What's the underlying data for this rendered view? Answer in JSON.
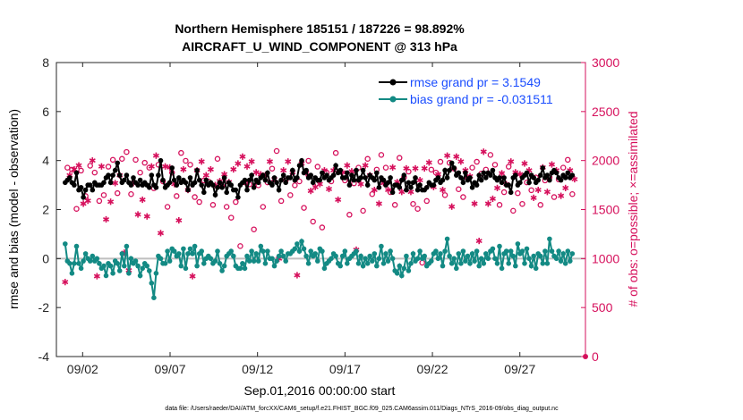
{
  "chart_data": {
    "type": "line",
    "title_line1": "Northern Hemisphere 185151 / 187226 = 98.892%",
    "title_line2": "AIRCRAFT_U_WIND_COMPONENT @ 313 hPa",
    "xlabel": "Sep.01,2016 00:00:00 start",
    "ylabel_left": "rmse and bias (model - observation)",
    "ylabel_right": "# of obs: o=possible; ×=assimilated",
    "footnote": "data file: /Users/raeder/DAI/ATM_forcXX/CAM6_setup/f.e21.FHIST_BGC.f09_025.CAM6assim.011/Diags_NTrS_2016-09/obs_diag_output.nc",
    "xlim": [
      0.5,
      30.75
    ],
    "ylim_left": [
      -4,
      8
    ],
    "ylim_right": [
      0,
      3000
    ],
    "x_ticks": [
      2,
      7,
      12,
      17,
      22,
      27
    ],
    "x_tick_labels": [
      "09/02",
      "09/07",
      "09/12",
      "09/17",
      "09/22",
      "09/27"
    ],
    "y_left_ticks": [
      "-4",
      "-2",
      "0",
      "2",
      "4",
      "6",
      "8"
    ],
    "y_right_ticks": [
      "0",
      "500",
      "1000",
      "1500",
      "2000",
      "2500",
      "3000"
    ],
    "colors": {
      "rmse": "#000000",
      "bias": "#138a84",
      "obs": "#d6105c",
      "zero_line": "#bfbfbf",
      "legend_text": "#1a4dff"
    },
    "series": [
      {
        "name": "rmse grand pr = 3.1549",
        "values": [
          3.1,
          3.2,
          3.3,
          3.1,
          3.0,
          3.5,
          2.8,
          2.9,
          2.5,
          2.8,
          3.0,
          3.0,
          2.8,
          3.1,
          3.0,
          3.0,
          3.0,
          3.1,
          3.3,
          3.4,
          3.1,
          3.4,
          3.6,
          3.9,
          3.4,
          3.1,
          3.2,
          3.4,
          3.1,
          3.0,
          3.3,
          3.1,
          3.0,
          3.2,
          3.0,
          3.1,
          3.0,
          2.9,
          3.4,
          3.0,
          2.9,
          3.4,
          4.0,
          3.2,
          2.9,
          3.0,
          3.1,
          3.7,
          3.2,
          3.0,
          3.3,
          3.1,
          3.2,
          3.1,
          2.8,
          3.3,
          3.0,
          3.1,
          3.6,
          3.2,
          3.0,
          2.7,
          3.2,
          3.0,
          3.1,
          3.0,
          2.6,
          2.9,
          3.1,
          2.9,
          3.3,
          2.7,
          3.1,
          3.0,
          2.8,
          2.8,
          2.5,
          3.0,
          3.1,
          3.2,
          2.8,
          3.2,
          3.4,
          2.9,
          3.2,
          3.1,
          3.3,
          3.4,
          3.2,
          3.5,
          3.1,
          3.0,
          3.3,
          3.1,
          2.8,
          3.2,
          3.4,
          3.1,
          3.3,
          3.3,
          3.6,
          3.2,
          3.3,
          3.8,
          4.0,
          3.5,
          3.6,
          3.3,
          3.4,
          3.1,
          3.3,
          3.2,
          3.2,
          3.5,
          3.3,
          3.4,
          3.2,
          3.3,
          3.4,
          3.8,
          3.5,
          3.6,
          3.3,
          3.3,
          3.5,
          3.0,
          3.4,
          3.2,
          3.6,
          3.2,
          3.3,
          3.6,
          3.3,
          3.0,
          3.4,
          3.3,
          3.2,
          3.5,
          2.9,
          3.3,
          3.2,
          3.0,
          3.1,
          3.3,
          2.7,
          3.0,
          3.0,
          2.9,
          3.2,
          3.4,
          2.8,
          3.1,
          2.9,
          3.1,
          3.3,
          2.8,
          3.0,
          2.8,
          2.8,
          2.9,
          3.1,
          3.0,
          3.0,
          3.2,
          3.3,
          3.1,
          3.2,
          3.6,
          3.3,
          3.6,
          3.9,
          3.7,
          3.4,
          3.5,
          3.3,
          3.1,
          3.5,
          3.2,
          3.3,
          2.9,
          3.1,
          3.0,
          3.4,
          3.2,
          3.5,
          3.3,
          3.5,
          3.4,
          3.6,
          3.3,
          3.2,
          3.3,
          3.1,
          3.3,
          3.0,
          3.0,
          2.7,
          3.3,
          3.4,
          3.0,
          3.1,
          3.3,
          3.4,
          3.5,
          3.1,
          3.4,
          3.3,
          3.1,
          3.2,
          3.4,
          3.7,
          3.3,
          3.4,
          3.2,
          3.5,
          3.6,
          3.5,
          3.3,
          3.2,
          3.4,
          3.3,
          3.5,
          3.3,
          3.4
        ]
      },
      {
        "name": "bias grand pr = -0.031511",
        "values": [
          0.6,
          -0.1,
          -0.2,
          -0.6,
          -0.2,
          0.5,
          -0.2,
          -0.4,
          -0.1,
          0.2,
          0.0,
          -0.1,
          0.1,
          -0.1,
          0.0,
          -0.2,
          -0.4,
          -0.3,
          -0.7,
          -0.2,
          -0.3,
          -0.6,
          -0.1,
          -0.2,
          -0.5,
          0.2,
          -0.3,
          0.5,
          -0.6,
          0.0,
          -0.2,
          -0.1,
          -0.3,
          -0.7,
          -0.4,
          -0.2,
          -0.3,
          -0.5,
          -1.0,
          -1.6,
          -0.6,
          0.1,
          0.0,
          -0.2,
          -0.2,
          0.3,
          -0.1,
          0.4,
          0.3,
          0.1,
          0.2,
          -0.3,
          0.4,
          -0.4,
          0.2,
          0.4,
          0.2,
          0.5,
          -0.3,
          0.2,
          0.3,
          -0.2,
          0.0,
          0.1,
          0.0,
          -0.2,
          -0.1,
          0.3,
          -0.2,
          -0.5,
          -0.3,
          0.1,
          0.2,
          0.3,
          0.1,
          -0.3,
          -0.4,
          -0.4,
          -0.2,
          -0.4,
          0.1,
          -0.1,
          0.3,
          -0.1,
          0.2,
          -0.1,
          0.5,
          0.3,
          -0.2,
          0.3,
          0.0,
          0.0,
          -0.3,
          -0.1,
          0.1,
          0.3,
          0.1,
          -0.1,
          0.2,
          0.2,
          0.3,
          0.4,
          0.6,
          0.3,
          0.7,
          0.4,
          0.1,
          -0.2,
          0.3,
          0.1,
          0.2,
          -0.1,
          0.4,
          0.3,
          -0.4,
          -0.2,
          -0.1,
          0.0,
          0.2,
          0.1,
          -0.2,
          -0.3,
          0.1,
          0.3,
          -0.2,
          0.0,
          0.1,
          0.2,
          0.3,
          -0.2,
          0.1,
          -0.3,
          0.0,
          -0.2,
          0.1,
          -0.1,
          0.2,
          -0.3,
          0.0,
          0.5,
          -0.2,
          0.2,
          -0.1,
          0.3,
          0.0,
          -0.5,
          -0.6,
          -0.3,
          -0.7,
          -0.4,
          0.1,
          -0.5,
          -0.2,
          0.2,
          -0.1,
          0.0,
          0.3,
          0.0,
          0.1,
          -0.3,
          -0.2,
          -0.1,
          0.2,
          0.3,
          0.0,
          0.2,
          -0.3,
          0.3,
          0.8,
          0.1,
          -0.2,
          0.0,
          -0.4,
          0.2,
          -0.2,
          0.3,
          -0.1,
          0.1,
          -0.2,
          0.2,
          -0.1,
          0.3,
          -0.3,
          0.0,
          -0.2,
          0.2,
          0.0,
          0.3,
          0.4,
          0.0,
          -0.2,
          0.5,
          -0.4,
          0.2,
          0.3,
          -0.2,
          0.3,
          0.1,
          -0.3,
          0.6,
          0.2,
          0.3,
          -0.2,
          0.4,
          0.0,
          -0.3,
          0.1,
          -0.4,
          0.2,
          0.1,
          -0.2,
          0.3,
          -0.2,
          0.8,
          0.3,
          0.1,
          0.0,
          0.3,
          -0.1,
          0.2,
          -0.2,
          0.3,
          -0.1,
          0.2
        ]
      }
    ],
    "obs_counts": [
      760,
      1900,
      1850,
      1880,
      1910,
      1480,
      1950,
      1870,
      1560,
      1610,
      1590,
      1920,
      2000,
      1850,
      820,
      1560,
      1940,
      1620,
      1400,
      1910,
      1580,
      1980,
      1770,
      1640,
      1850,
      1990,
      1060,
      2060,
      880,
      1630,
      1770,
      1980,
      1450,
      1850,
      1600,
      1950,
      1430,
      1900,
      1940,
      1690,
      2050,
      1930,
      1260,
      1760,
      1940,
      1500,
      1930,
      1850,
      1760,
      1610,
      1390,
      2050,
      1910,
      1970,
      1700,
      1930,
      820,
      1600,
      1900,
      1550,
      1990,
      1770,
      1850,
      1760,
      1910,
      1520,
      1750,
      1990,
      1790,
      1710,
      1860,
      1500,
      1780,
      1390,
      1910,
      1550,
      1970,
      1100,
      2040,
      1750,
      1940,
      1730,
      1990,
      1270,
      1880,
      1720,
      1860,
      1500,
      1850,
      1750,
      1990,
      1890,
      1810,
      2070,
      1000,
      1560,
      1900,
      1770,
      1990,
      1620,
      1880,
      1720,
      830,
      1760,
      1970,
      1490,
      1870,
      1970,
      1690,
      1350,
      1730,
      1910,
      1760,
      1290,
      1900,
      1850,
      1710,
      1760,
      1900,
      2050,
      1600,
      1860,
      1880,
      1770,
      1950,
      1420,
      1890,
      1740,
      1090,
      1900,
      1760,
      1460,
      1950,
      1990,
      1850,
      1630,
      1700,
      1880,
      1560,
      2030,
      1770,
      1900,
      1700,
      1650,
      1930,
      1520,
      1780,
      2000,
      1680,
      1800,
      1920,
      1860,
      1680,
      1530,
      1920,
      1480,
      1800,
      930,
      1920,
      1560,
      1980,
      1880,
      1730,
      1850,
      1860,
      1960,
      1700,
      1620,
      2050,
      1950,
      1530,
      1890,
      2040,
      1680,
      1990,
      1600,
      1900,
      1790,
      1840,
      1900,
      1560,
      1960,
      1180,
      1840,
      2090,
      1880,
      1560,
      2030,
      1610,
      1930,
      1720,
      1520,
      1870,
      1650,
      1760,
      1910,
      1990,
      1460,
      1880,
      1640,
      1860,
      1530,
      1970,
      1750,
      1900,
      1670,
      1620,
      1800,
      1700,
      1520,
      1930,
      1770,
      1680,
      1800,
      1960,
      1600,
      1900,
      1780,
      1640,
      1900,
      1720,
      1980,
      1900,
      1630,
      1810
    ],
    "obs_counts_markers_from_image": {
      "note": "dense alternating assimilated and possible markers follow the counts series"
    },
    "zero_line": true
  }
}
